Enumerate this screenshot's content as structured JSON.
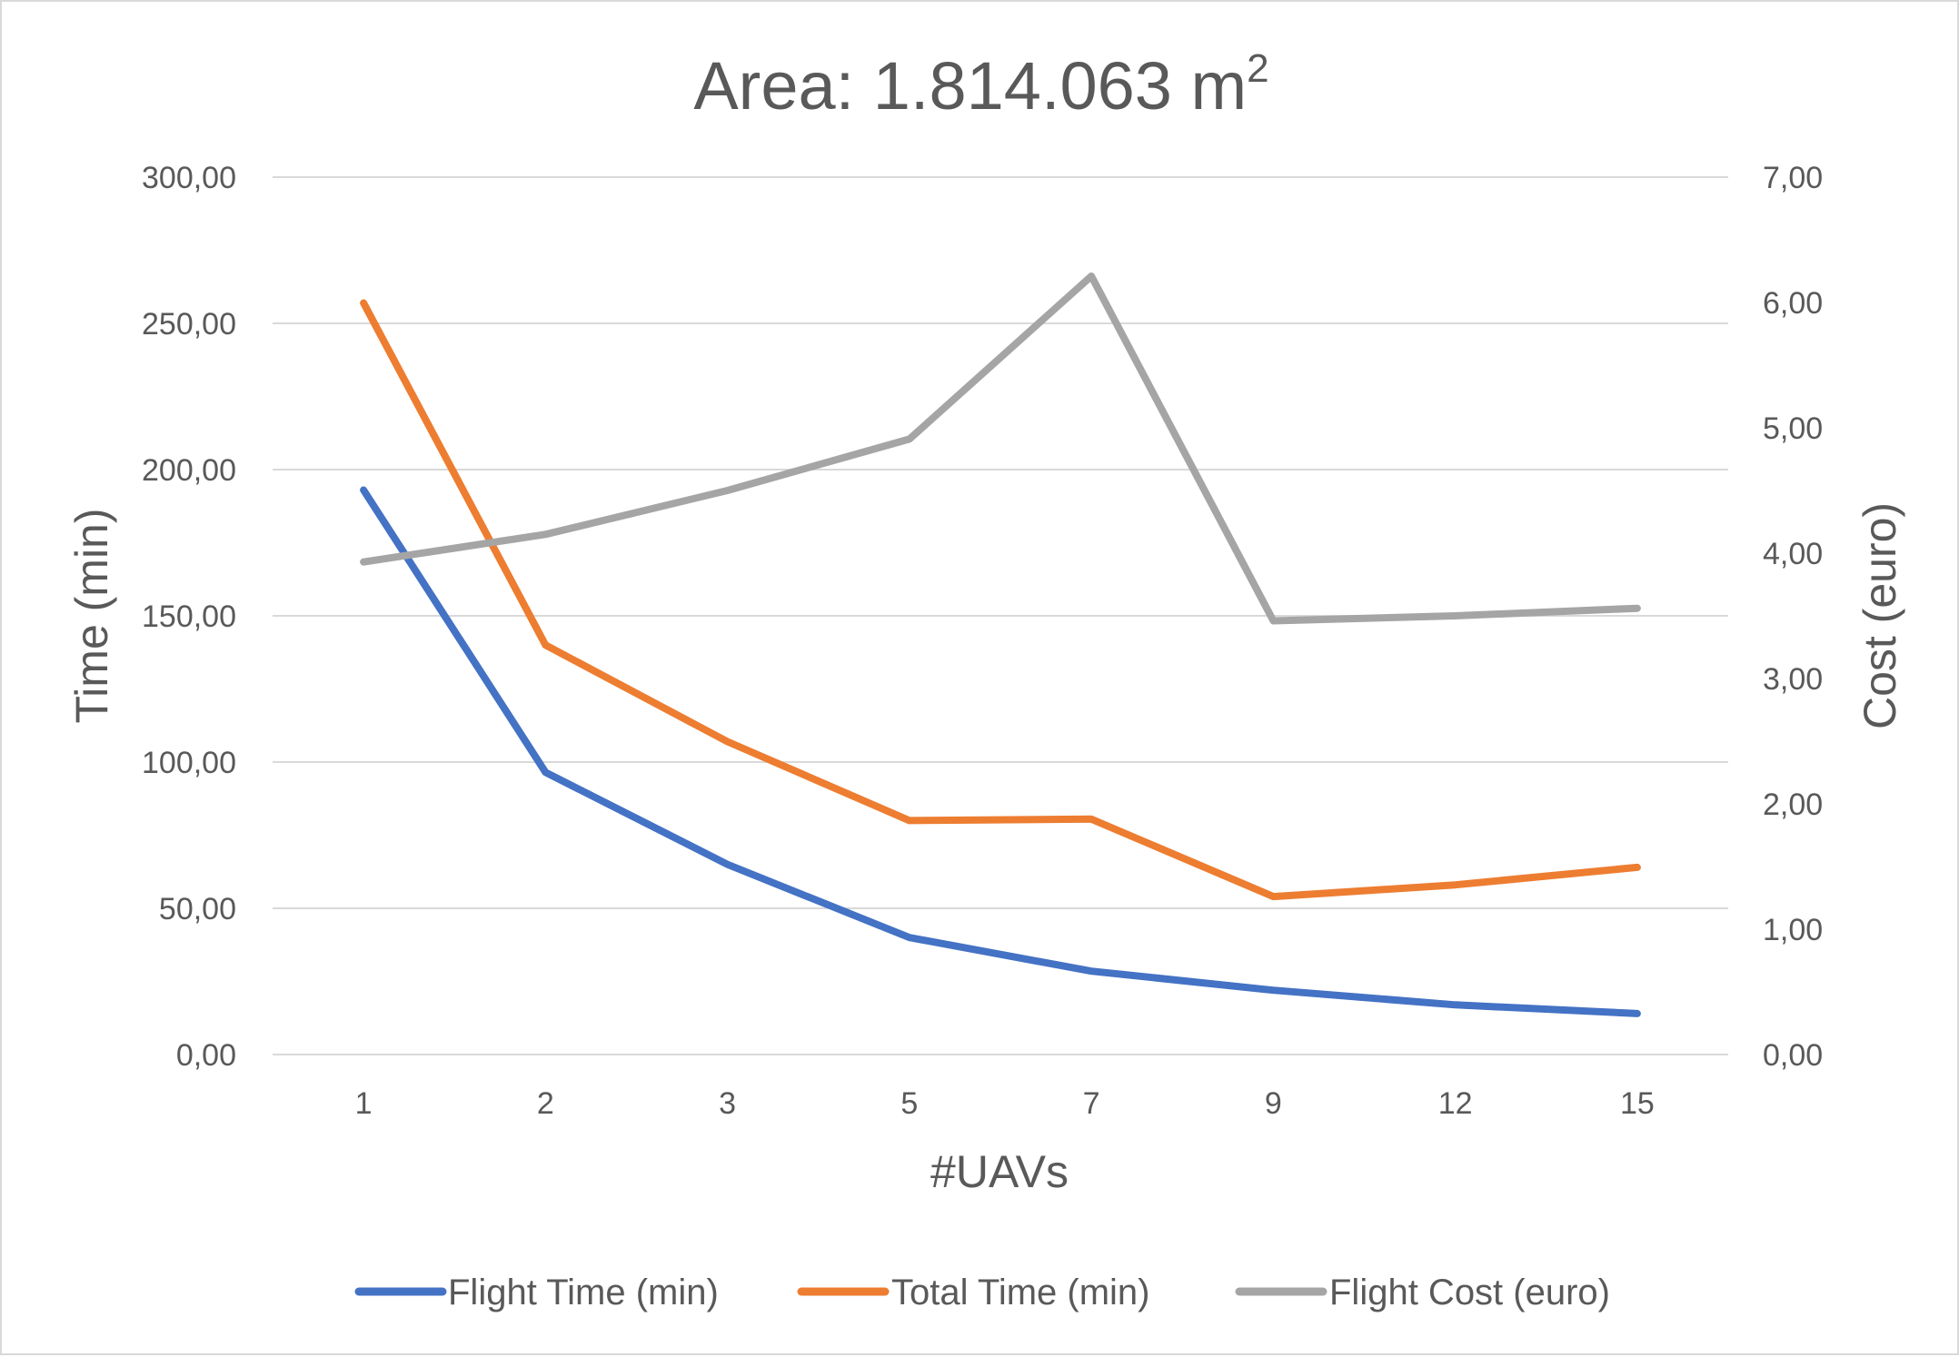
{
  "chart_data": {
    "type": "line",
    "title": "Area: 1.814.063 m",
    "title_superscript": "2",
    "xlabel": "#UAVs",
    "ylabel_left": "Time (min)",
    "ylabel_right": "Cost (euro)",
    "categories": [
      "1",
      "2",
      "3",
      "5",
      "7",
      "9",
      "12",
      "15"
    ],
    "y_left": {
      "range": [
        0,
        300
      ],
      "ticks": [
        0,
        50,
        100,
        150,
        200,
        250,
        300
      ],
      "tick_labels": [
        "0,00",
        "50,00",
        "100,00",
        "150,00",
        "200,00",
        "250,00",
        "300,00"
      ]
    },
    "y_right": {
      "range": [
        0,
        7
      ],
      "ticks": [
        0,
        1,
        2,
        3,
        4,
        5,
        6,
        7
      ],
      "tick_labels": [
        "0,00",
        "1,00",
        "2,00",
        "3,00",
        "4,00",
        "5,00",
        "6,00",
        "7,00"
      ]
    },
    "grid": true,
    "legend_position": "bottom",
    "series": [
      {
        "name": "Flight Time (min)",
        "axis": "left",
        "color": "#4472c4",
        "values": [
          193,
          96.5,
          65,
          40,
          28.5,
          22,
          17,
          14
        ]
      },
      {
        "name": "Total Time (min)",
        "axis": "left",
        "color": "#ed7d31",
        "values": [
          257,
          140,
          107,
          80,
          80.5,
          54,
          58,
          64
        ]
      },
      {
        "name": "Flight Cost (euro)",
        "axis": "right",
        "color": "#a5a5a5",
        "values": [
          3.93,
          4.15,
          4.5,
          4.91,
          6.21,
          3.46,
          3.5,
          3.56
        ]
      }
    ]
  }
}
